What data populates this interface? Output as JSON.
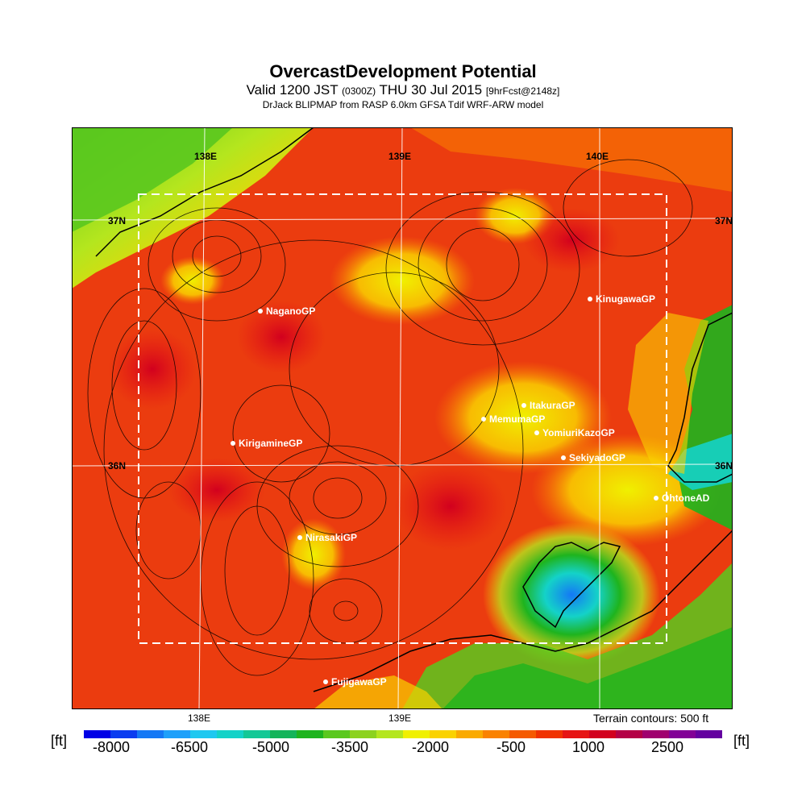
{
  "title": "OvercastDevelopment Potential",
  "subtitle": {
    "main": "Valid 1200 JST",
    "z": "(0300Z)",
    "date": "THU 30 Jul 2015",
    "fcst": "[9hrFcst@2148z]"
  },
  "source_line": "DrJack BLIPMAP from RASP 6.0km GFSA Tdif WRF-ARW model",
  "map": {
    "lon_labels_top": [
      "138E",
      "139E",
      "140E"
    ],
    "lon_labels_bottom": [
      "138E",
      "139E"
    ],
    "lat_labels_left": [
      "37N",
      "36N"
    ],
    "lat_labels_right": [
      "37N",
      "36N"
    ],
    "sites": [
      {
        "name": "NaganoGP"
      },
      {
        "name": "KinugawaGP"
      },
      {
        "name": "ItakuraGP"
      },
      {
        "name": "MemumaGP"
      },
      {
        "name": "YomiuriKazoGP"
      },
      {
        "name": "KirigamineGP"
      },
      {
        "name": "SekiyadoGP"
      },
      {
        "name": "OhtoneAD"
      },
      {
        "name": "NirasakiGP"
      },
      {
        "name": "FujigawaGP"
      }
    ]
  },
  "terrain_note": "Terrain contours: 500 ft",
  "unit_left": "[ft]",
  "unit_right": "[ft]",
  "scale": {
    "labels": [
      "-8000",
      "-6500",
      "-5000",
      "-3500",
      "-2000",
      "-500",
      "1000",
      "2500"
    ],
    "colors": [
      "#0000e6",
      "#0a3cf0",
      "#1478f5",
      "#1ea0fa",
      "#1ec8f0",
      "#14d2c8",
      "#14c896",
      "#14b45a",
      "#1eb41e",
      "#5ac81e",
      "#8cd21e",
      "#b4e61e",
      "#f0f000",
      "#fad200",
      "#faaa00",
      "#fa8200",
      "#f55a00",
      "#f03200",
      "#e61414",
      "#d2001e",
      "#b40046",
      "#a0006e",
      "#820096",
      "#6400a0"
    ],
    "colors_note": "blue-cyan-green-yellow-orange-red-purple"
  },
  "colors": {
    "ocean_green": "#14b45a",
    "land_red": "#e63214"
  }
}
